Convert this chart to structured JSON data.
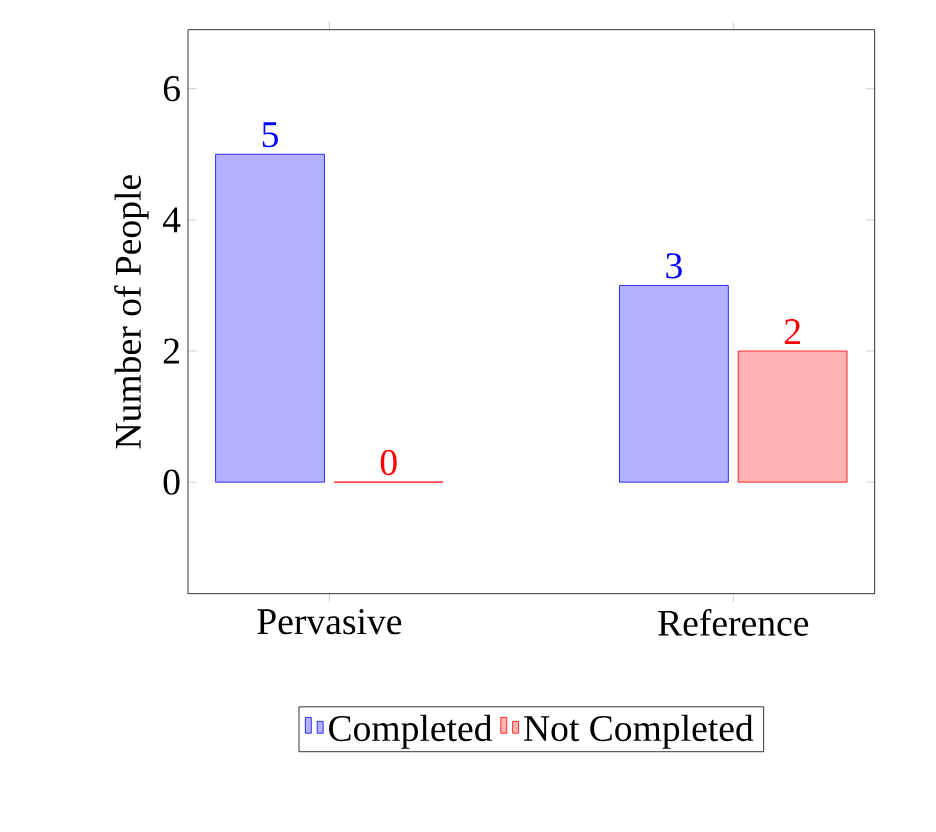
{
  "chart_data": {
    "type": "bar",
    "ylabel": "Number of People",
    "categories": [
      "Pervasive",
      "Reference"
    ],
    "series": [
      {
        "name": "Completed",
        "color": "#0000ff",
        "values": [
          5,
          3
        ]
      },
      {
        "name": "Not Completed",
        "color": "#ff0000",
        "values": [
          0,
          2
        ]
      }
    ],
    "ylim": [
      -1.7,
      6.9
    ],
    "yticks": [
      0,
      2,
      4,
      6
    ],
    "data_labels": true,
    "legend": "bottom",
    "grid": false
  }
}
